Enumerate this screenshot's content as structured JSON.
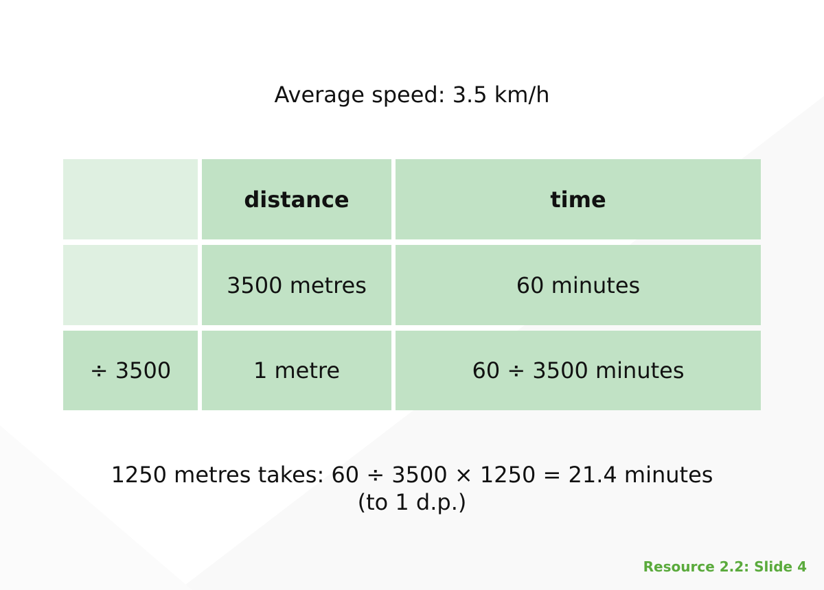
{
  "slide": {
    "title": "Average speed: 3.5 km/h",
    "table": {
      "headers": [
        "",
        "distance",
        "time"
      ],
      "rows": [
        [
          "",
          "3500 metres",
          "60 minutes"
        ],
        [
          "÷ 3500",
          "1 metre",
          "60 ÷ 3500 minutes"
        ]
      ]
    },
    "result_line1": "1250 metres takes: 60 ÷ 3500 × 1250 = 21.4  minutes",
    "result_line2": "(to 1 d.p.)",
    "footer": "Resource 2.2: Slide 4"
  },
  "colors": {
    "cell_green": "#c1e2c5",
    "cell_light_green": "#dff0e1",
    "footer_green": "#5aaa3c"
  }
}
